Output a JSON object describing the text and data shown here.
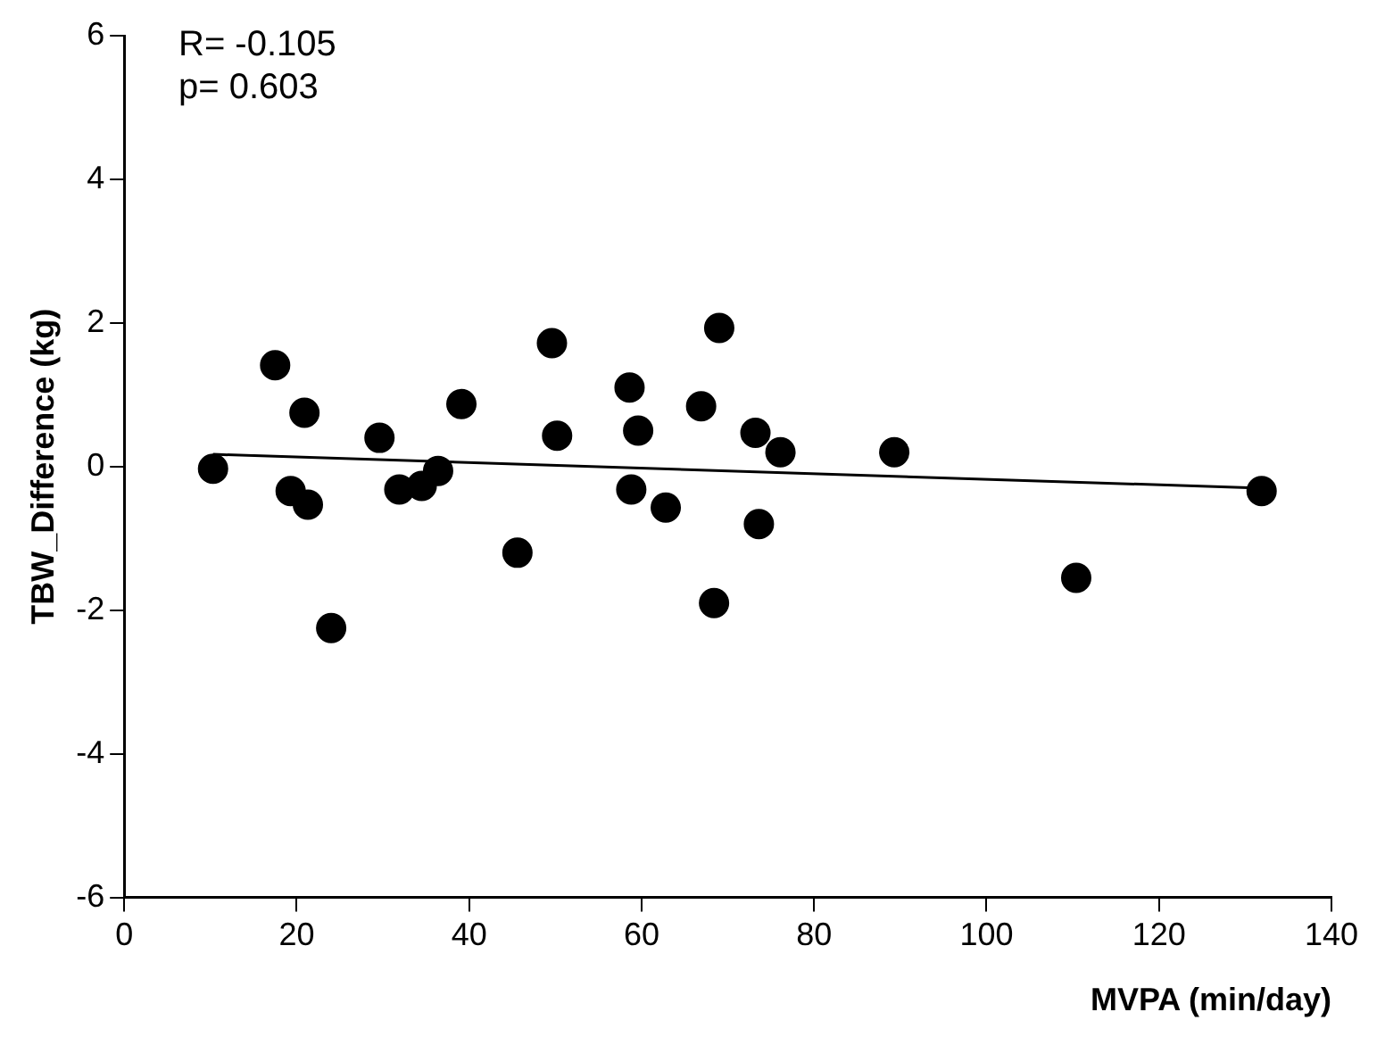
{
  "chart_data": {
    "type": "scatter",
    "xlabel": "MVPA (min/day)",
    "ylabel": "TBW_Difference (kg)",
    "annotations": [
      "R= -0.105",
      "p= 0.603"
    ],
    "xlim": [
      0,
      140
    ],
    "xticks": [
      0,
      20,
      40,
      60,
      80,
      100,
      120,
      140
    ],
    "ylim": [
      -6,
      6
    ],
    "yticks": [
      -6,
      -4,
      -2,
      0,
      2,
      4,
      6
    ],
    "grid": false,
    "legend": false,
    "marker": "circle",
    "series": [
      {
        "color": "#000000",
        "x": [
          10.3,
          17.5,
          20.9,
          19.3,
          21.3,
          24.0,
          29.6,
          31.9,
          34.5,
          36.4,
          39.1,
          45.6,
          49.6,
          50.2,
          58.6,
          59.6,
          58.8,
          62.8,
          69.0,
          66.9,
          68.4,
          73.2,
          73.6,
          76.1,
          89.3,
          110.4,
          131.9
        ],
        "values": [
          -0.03,
          1.41,
          0.75,
          -0.34,
          -0.53,
          -2.25,
          0.4,
          -0.32,
          -0.27,
          -0.06,
          0.87,
          -1.2,
          1.72,
          0.43,
          1.1,
          0.5,
          -0.32,
          -0.57,
          1.93,
          0.84,
          -1.9,
          0.47,
          -0.8,
          0.2,
          0.2,
          -1.55,
          -0.34
        ]
      },
      {
        "type": "line",
        "color": "#000000",
        "marker": "none",
        "x": [
          10.3,
          131.9
        ],
        "values": [
          0.17,
          -0.3
        ]
      }
    ]
  }
}
